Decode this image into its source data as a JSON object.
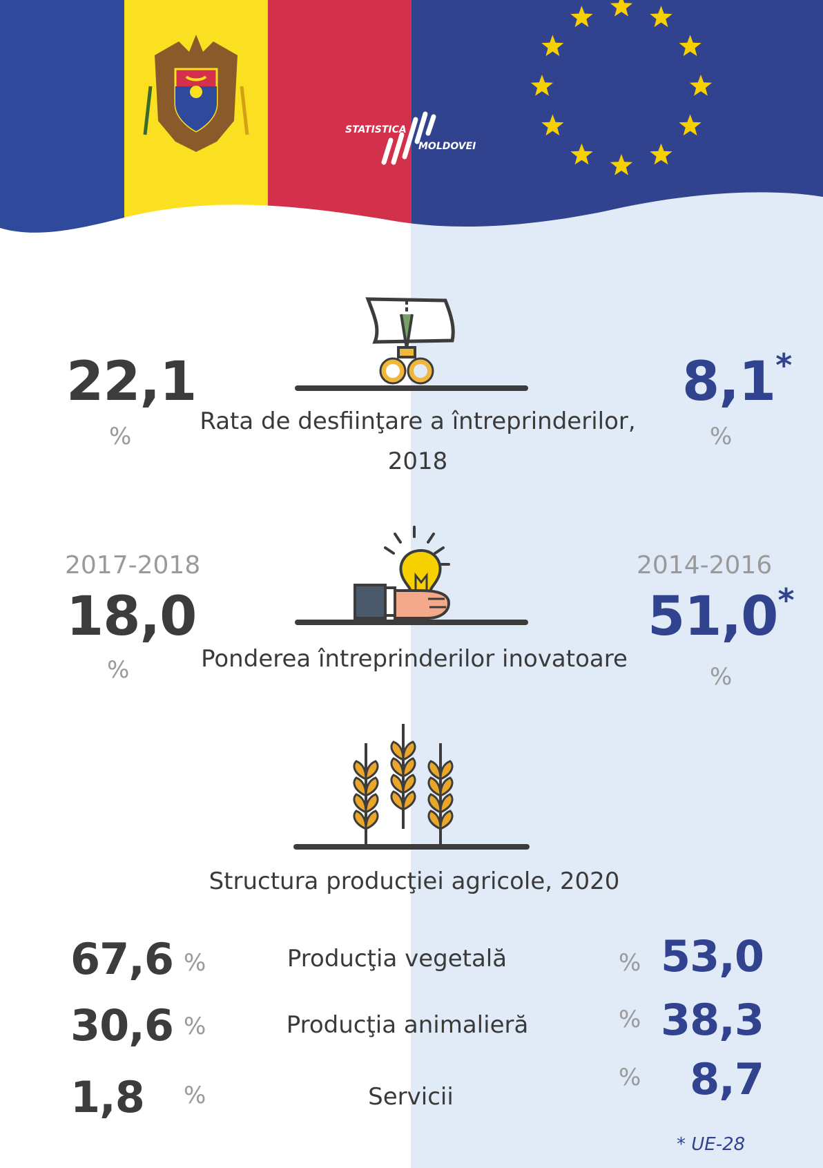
{
  "header": {
    "logo_top": "STATISTICA",
    "logo_bottom": "MOLDOVEI"
  },
  "colors": {
    "md_blue": "#2f4a9a",
    "md_yellow": "#fbe021",
    "md_red": "#d3304b",
    "eu_blue": "#31428e",
    "eu_star": "#f7d000",
    "dark_value": "#3c3c3c",
    "blue_value": "#31428e",
    "muted": "#9a9a9a",
    "right_bg": "#e1eaf7"
  },
  "section1": {
    "icon": "scissors-cutting-paper-icon",
    "md_value": "22,1",
    "md_unit": "%",
    "eu_value": "8,1",
    "eu_mark": "*",
    "eu_unit": "%",
    "label_line1": "Rata de desfiinţare a întreprinderilor,",
    "label_line2": "2018"
  },
  "section2": {
    "icon": "hand-holding-lightbulb-icon",
    "md_period": "2017-2018",
    "md_value": "18,0",
    "md_unit": "%",
    "eu_period": "2014-2016",
    "eu_value": "51,0",
    "eu_mark": "*",
    "eu_unit": "%",
    "label": "Ponderea întreprinderilor inovatoare"
  },
  "section3": {
    "icon": "wheat-ears-icon",
    "title": "Structura producţiei agricole, 2020",
    "rows": [
      {
        "label": "Producţia vegetală",
        "md_value": "67,6",
        "md_unit": "%",
        "eu_unit": "%",
        "eu_value": "53,0"
      },
      {
        "label": "Producţia animalieră",
        "md_value": "30,6",
        "md_unit": "%",
        "eu_unit": "%",
        "eu_value": "38,3"
      },
      {
        "label": "Servicii",
        "md_value": "1,8",
        "md_unit": "%",
        "eu_unit": "%",
        "eu_value": "8,7"
      }
    ]
  },
  "footnote": "* UE-28"
}
